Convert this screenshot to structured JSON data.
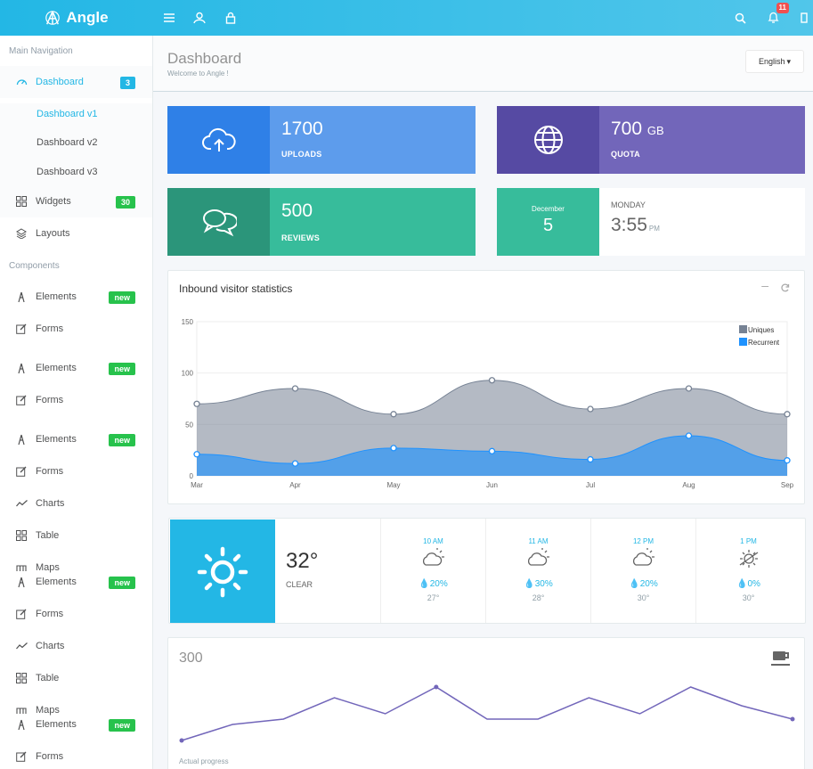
{
  "brand": {
    "name": "Angle"
  },
  "topbar": {
    "notification_count": "11"
  },
  "sidebar": {
    "heading_main": "Main Navigation",
    "dashboard": {
      "label": "Dashboard",
      "badge": "3",
      "sub": [
        "Dashboard v1",
        "Dashboard v2",
        "Dashboard v3"
      ]
    },
    "widgets": {
      "label": "Widgets",
      "badge": "30"
    },
    "layouts": {
      "label": "Layouts"
    },
    "heading_components": "Components",
    "items": [
      {
        "label": "Elements",
        "badge": "new"
      },
      {
        "label": "Forms"
      },
      {
        "label": "Elements",
        "badge": "new"
      },
      {
        "label": "Forms"
      },
      {
        "label": "Elements",
        "badge": "new"
      },
      {
        "label": "Forms"
      },
      {
        "label": "Charts"
      },
      {
        "label": "Table"
      },
      {
        "label": "Maps"
      },
      {
        "label": "Elements",
        "badge": "new"
      },
      {
        "label": "Forms"
      },
      {
        "label": "Charts"
      },
      {
        "label": "Table"
      },
      {
        "label": "Maps"
      },
      {
        "label": "Elements",
        "badge": "new"
      },
      {
        "label": "Forms"
      }
    ]
  },
  "header": {
    "title": "Dashboard",
    "subtitle": "Welcome to Angle !",
    "language": "English"
  },
  "stats": {
    "uploads": {
      "value": "1700",
      "label": "UPLOADS"
    },
    "quota": {
      "value": "700",
      "unit": "GB",
      "label": "QUOTA"
    },
    "reviews": {
      "value": "500",
      "label": "REVIEWS"
    },
    "date": {
      "month": "December",
      "day": "5",
      "weekday": "MONDAY",
      "time": "3:55",
      "ampm": "PM"
    }
  },
  "chart_data": {
    "type": "area",
    "title": "Inbound visitor statistics",
    "categories": [
      "Mar",
      "Apr",
      "May",
      "Jun",
      "Jul",
      "Aug",
      "Sep"
    ],
    "series": [
      {
        "name": "Uniques",
        "values": [
          70,
          85,
          60,
          93,
          65,
          85,
          60
        ],
        "color": "#768294"
      },
      {
        "name": "Recurrent",
        "values": [
          21,
          12,
          27,
          24,
          16,
          39,
          15
        ],
        "color": "#1f92fe"
      }
    ],
    "ylim": [
      0,
      150
    ],
    "yticks": [
      0,
      50,
      100,
      150
    ],
    "legend": "top-right"
  },
  "weather": {
    "now": {
      "temp": "32°",
      "condition": "CLEAR"
    },
    "hours": [
      {
        "time": "10 AM",
        "rain": "20%",
        "temp": "27°",
        "icon": "partly-cloudy-icon"
      },
      {
        "time": "11 AM",
        "rain": "30%",
        "temp": "28°",
        "icon": "partly-cloudy-icon"
      },
      {
        "time": "12 PM",
        "rain": "20%",
        "temp": "30°",
        "icon": "partly-cloudy-icon"
      },
      {
        "time": "1 PM",
        "rain": "0%",
        "temp": "30°",
        "icon": "cloud-sun-icon"
      }
    ]
  },
  "progress": {
    "value": "300",
    "label": "Actual progress",
    "points": [
      3,
      6,
      7,
      11,
      8,
      13,
      7,
      7,
      11,
      8,
      13,
      9.5,
      7
    ]
  },
  "colors": {
    "primary": "#23b7e5",
    "blue": "#5d9cec",
    "purple": "#7266ba",
    "green": "#37bc9b",
    "success": "#27c24c",
    "danger": "#f05050"
  }
}
